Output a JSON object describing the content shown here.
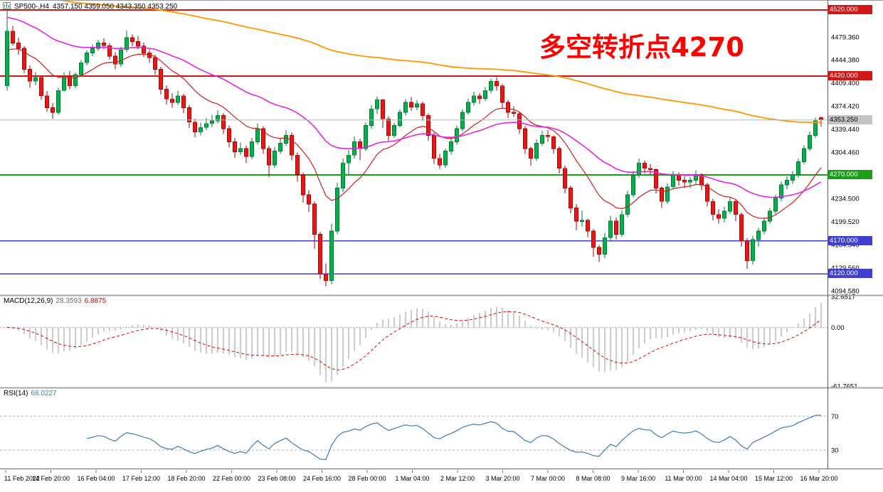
{
  "header": {
    "symbol_title": "SP500-,H4",
    "ohlc": "4357.150 4359.050 4343.350 4353.250"
  },
  "annotation": {
    "text": "多空转折点4270",
    "color": "#FF0000"
  },
  "indicators": {
    "macd": {
      "name": "MACD(12,26,9)",
      "value": "28.3593",
      "signal_value": "6.8875"
    },
    "rsi": {
      "name": "RSI(14)",
      "value": "68.0227"
    }
  },
  "colors": {
    "up_fill": "#00B14C",
    "up_edge": "#007A34",
    "down_fill": "#F01414",
    "down_edge": "#AA0000",
    "bid_line": "#B8B8B8",
    "bid_tag_bg": "#C4C4C4",
    "macd_hist": "#9A9A9A",
    "macd_signal": "#E00000",
    "rsi_line": "#3E7CB8",
    "level_dash": "#B0B0B0"
  },
  "chart_data": {
    "type": "candlestick",
    "symbol": "SP500-",
    "timeframe": "H4",
    "price_axis": {
      "max": 4533,
      "min": 4089,
      "tick_labels": [
        "4479.360",
        "4444.380",
        "4409.400",
        "4374.420",
        "4339.440",
        "4304.460",
        "4269.480",
        "4234.500",
        "4199.520",
        "4164.540",
        "4129.560",
        "4094.580"
      ]
    },
    "hlines": [
      {
        "value": 4520.0,
        "color": "#D01818",
        "label": "4520.000"
      },
      {
        "value": 4420.0,
        "color": "#D01818",
        "label": "4420.000"
      },
      {
        "value": 4270.0,
        "color": "#18A018",
        "label": "4270.000"
      },
      {
        "value": 4170.0,
        "color": "#4040D0",
        "label": "4170.000"
      },
      {
        "value": 4120.0,
        "color": "#4040D0",
        "label": "4120.000"
      }
    ],
    "current_price": {
      "value": 4353.25,
      "label": "4353.250"
    },
    "moving_averages": [
      {
        "period": 14,
        "seed": 4455,
        "color": "#CC2020",
        "width": 1.2
      },
      {
        "period": 40,
        "seed": 4510,
        "color": "#E226E2",
        "width": 1.6
      },
      {
        "period": 190,
        "seed": 4548,
        "color": "#FF9800",
        "width": 1.8
      }
    ],
    "macd": {
      "fast": 12,
      "slow": 26,
      "signal": 9,
      "axis_labels": [
        "32.6517",
        "0.00",
        "-61.7651"
      ]
    },
    "rsi": {
      "period": 14,
      "levels": [
        70,
        30
      ]
    },
    "time_labels": [
      "11 Feb 2022",
      "14 Feb 20:00",
      "16 Feb 04:00",
      "17 Feb 12:00",
      "18 Feb 20:00",
      "22 Feb 00:00",
      "23 Feb 08:00",
      "24 Feb 16:00",
      "28 Feb 00:00",
      "1 Mar 04:00",
      "2 Mar 12:00",
      "3 Mar 20:00",
      "7 Mar 00:00",
      "8 Mar 08:00",
      "9 Mar 16:00",
      "11 Mar 00:00",
      "14 Mar 04:00",
      "15 Mar 12:00",
      "16 Mar 20:00"
    ],
    "candles": [
      [
        4405,
        4522,
        4398,
        4488
      ],
      [
        4488,
        4496,
        4466,
        4470
      ],
      [
        4470,
        4478,
        4452,
        4462
      ],
      [
        4462,
        4465,
        4424,
        4430
      ],
      [
        4430,
        4436,
        4402,
        4412
      ],
      [
        4412,
        4426,
        4406,
        4418
      ],
      [
        4418,
        4421,
        4384,
        4390
      ],
      [
        4390,
        4397,
        4366,
        4372
      ],
      [
        4372,
        4379,
        4355,
        4365
      ],
      [
        4365,
        4402,
        4361,
        4398
      ],
      [
        4398,
        4426,
        4396,
        4420
      ],
      [
        4420,
        4428,
        4400,
        4405
      ],
      [
        4405,
        4425,
        4401,
        4422
      ],
      [
        4422,
        4444,
        4420,
        4440
      ],
      [
        4440,
        4459,
        4436,
        4455
      ],
      [
        4455,
        4468,
        4450,
        4462
      ],
      [
        4462,
        4475,
        4458,
        4470
      ],
      [
        4470,
        4477,
        4460,
        4466
      ],
      [
        4466,
        4470,
        4445,
        4450
      ],
      [
        4450,
        4456,
        4430,
        4438
      ],
      [
        4438,
        4464,
        4434,
        4460
      ],
      [
        4460,
        4489,
        4456,
        4478
      ],
      [
        4478,
        4483,
        4465,
        4472
      ],
      [
        4472,
        4480,
        4461,
        4465
      ],
      [
        4465,
        4471,
        4449,
        4455
      ],
      [
        4455,
        4460,
        4440,
        4448
      ],
      [
        4448,
        4452,
        4422,
        4430
      ],
      [
        4430,
        4434,
        4392,
        4400
      ],
      [
        4400,
        4406,
        4377,
        4385
      ],
      [
        4385,
        4394,
        4372,
        4380
      ],
      [
        4380,
        4398,
        4376,
        4390
      ],
      [
        4390,
        4393,
        4364,
        4372
      ],
      [
        4372,
        4376,
        4341,
        4350
      ],
      [
        4350,
        4355,
        4327,
        4335
      ],
      [
        4335,
        4349,
        4330,
        4342
      ],
      [
        4342,
        4356,
        4338,
        4348
      ],
      [
        4348,
        4361,
        4342,
        4352
      ],
      [
        4352,
        4368,
        4348,
        4360
      ],
      [
        4360,
        4364,
        4332,
        4340
      ],
      [
        4340,
        4345,
        4312,
        4320
      ],
      [
        4320,
        4326,
        4296,
        4305
      ],
      [
        4305,
        4319,
        4300,
        4310
      ],
      [
        4310,
        4315,
        4288,
        4298
      ],
      [
        4298,
        4326,
        4294,
        4320
      ],
      [
        4320,
        4348,
        4316,
        4340
      ],
      [
        4340,
        4344,
        4302,
        4310
      ],
      [
        4310,
        4314,
        4267,
        4285
      ],
      [
        4285,
        4312,
        4281,
        4306
      ],
      [
        4306,
        4325,
        4302,
        4318
      ],
      [
        4318,
        4338,
        4314,
        4330
      ],
      [
        4330,
        4334,
        4292,
        4300
      ],
      [
        4300,
        4304,
        4260,
        4270
      ],
      [
        4270,
        4274,
        4228,
        4240
      ],
      [
        4240,
        4247,
        4214,
        4226
      ],
      [
        4226,
        4230,
        4158,
        4180
      ],
      [
        4180,
        4184,
        4112,
        4120
      ],
      [
        4120,
        4136,
        4101,
        4110
      ],
      [
        4110,
        4196,
        4104,
        4185
      ],
      [
        4185,
        4258,
        4180,
        4250
      ],
      [
        4250,
        4295,
        4244,
        4288
      ],
      [
        4288,
        4308,
        4270,
        4300
      ],
      [
        4300,
        4328,
        4295,
        4320
      ],
      [
        4320,
        4325,
        4292,
        4310
      ],
      [
        4310,
        4350,
        4306,
        4345
      ],
      [
        4345,
        4376,
        4340,
        4370
      ],
      [
        4370,
        4389,
        4362,
        4384
      ],
      [
        4384,
        4385,
        4341,
        4355
      ],
      [
        4355,
        4359,
        4322,
        4330
      ],
      [
        4330,
        4349,
        4326,
        4345
      ],
      [
        4345,
        4369,
        4342,
        4365
      ],
      [
        4365,
        4385,
        4360,
        4380
      ],
      [
        4380,
        4388,
        4367,
        4373
      ],
      [
        4373,
        4383,
        4368,
        4378
      ],
      [
        4378,
        4381,
        4352,
        4360
      ],
      [
        4360,
        4363,
        4322,
        4330
      ],
      [
        4330,
        4334,
        4287,
        4295
      ],
      [
        4295,
        4302,
        4279,
        4285
      ],
      [
        4285,
        4310,
        4281,
        4306
      ],
      [
        4306,
        4326,
        4301,
        4320
      ],
      [
        4320,
        4345,
        4316,
        4340
      ],
      [
        4340,
        4370,
        4336,
        4365
      ],
      [
        4365,
        4386,
        4361,
        4380
      ],
      [
        4380,
        4396,
        4375,
        4390
      ],
      [
        4390,
        4394,
        4378,
        4386
      ],
      [
        4386,
        4403,
        4382,
        4398
      ],
      [
        4398,
        4416,
        4394,
        4412
      ],
      [
        4412,
        4418,
        4398,
        4405
      ],
      [
        4405,
        4408,
        4372,
        4380
      ],
      [
        4380,
        4384,
        4356,
        4365
      ],
      [
        4365,
        4374,
        4358,
        4363
      ],
      [
        4363,
        4365,
        4332,
        4340
      ],
      [
        4340,
        4344,
        4302,
        4310
      ],
      [
        4310,
        4313,
        4284,
        4295
      ],
      [
        4295,
        4324,
        4291,
        4318
      ],
      [
        4318,
        4337,
        4314,
        4330
      ],
      [
        4330,
        4338,
        4320,
        4328
      ],
      [
        4328,
        4330,
        4302,
        4310
      ],
      [
        4310,
        4313,
        4272,
        4280
      ],
      [
        4280,
        4284,
        4242,
        4250
      ],
      [
        4250,
        4254,
        4212,
        4220
      ],
      [
        4220,
        4226,
        4186,
        4200
      ],
      [
        4200,
        4216,
        4192,
        4201
      ],
      [
        4201,
        4204,
        4176,
        4185
      ],
      [
        4185,
        4188,
        4146,
        4160
      ],
      [
        4160,
        4164,
        4138,
        4150
      ],
      [
        4150,
        4182,
        4144,
        4175
      ],
      [
        4175,
        4208,
        4170,
        4200
      ],
      [
        4200,
        4206,
        4172,
        4180
      ],
      [
        4180,
        4216,
        4176,
        4210
      ],
      [
        4210,
        4246,
        4206,
        4240
      ],
      [
        4240,
        4276,
        4236,
        4270
      ],
      [
        4270,
        4295,
        4266,
        4288
      ],
      [
        4288,
        4292,
        4272,
        4280
      ],
      [
        4280,
        4287,
        4270,
        4278
      ],
      [
        4278,
        4280,
        4242,
        4250
      ],
      [
        4250,
        4253,
        4220,
        4230
      ],
      [
        4230,
        4257,
        4226,
        4252
      ],
      [
        4252,
        4276,
        4248,
        4270
      ],
      [
        4270,
        4274,
        4254,
        4262
      ],
      [
        4262,
        4268,
        4250,
        4259
      ],
      [
        4259,
        4267,
        4250,
        4262
      ],
      [
        4262,
        4277,
        4256,
        4270
      ],
      [
        4270,
        4273,
        4247,
        4255
      ],
      [
        4255,
        4258,
        4222,
        4230
      ],
      [
        4230,
        4234,
        4201,
        4210
      ],
      [
        4210,
        4218,
        4196,
        4204
      ],
      [
        4204,
        4222,
        4198,
        4215
      ],
      [
        4215,
        4237,
        4211,
        4230
      ],
      [
        4230,
        4233,
        4200,
        4210
      ],
      [
        4210,
        4213,
        4161,
        4170
      ],
      [
        4170,
        4174,
        4128,
        4140
      ],
      [
        4140,
        4178,
        4134,
        4172
      ],
      [
        4172,
        4190,
        4161,
        4185
      ],
      [
        4185,
        4206,
        4180,
        4200
      ],
      [
        4200,
        4220,
        4196,
        4215
      ],
      [
        4215,
        4240,
        4211,
        4235
      ],
      [
        4235,
        4260,
        4230,
        4255
      ],
      [
        4255,
        4268,
        4248,
        4262
      ],
      [
        4262,
        4276,
        4256,
        4270
      ],
      [
        4270,
        4295,
        4266,
        4290
      ],
      [
        4290,
        4315,
        4286,
        4310
      ],
      [
        4310,
        4336,
        4306,
        4330
      ],
      [
        4330,
        4357,
        4326,
        4352
      ],
      [
        4357.15,
        4359.05,
        4343.35,
        4353.25
      ]
    ]
  }
}
